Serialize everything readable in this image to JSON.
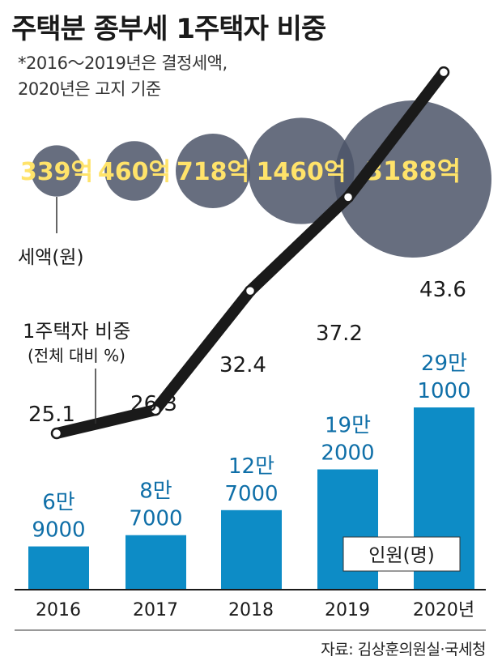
{
  "title": "주택분 종부세 1주택자 비중",
  "note_line1": "*2016～2019년은 결정세액,",
  "note_line2": "2020년은 고지 기준",
  "source": "자료: 김상훈의원실·국세청",
  "colors": {
    "bubble": "#4c5568",
    "bubble_text": "#ffe36a",
    "bar": "#0d8cc6",
    "bar_text": "#0f6fa8",
    "line": "#1a1a1a"
  },
  "chart_data": [
    {
      "type": "bubble",
      "series_label": "세액(원)",
      "categories": [
        "2016",
        "2017",
        "2018",
        "2019",
        "2020년"
      ],
      "values": [
        339,
        460,
        718,
        1460,
        3188
      ],
      "labels": [
        "339억",
        "460억",
        "718억",
        "1460억",
        "3188억"
      ]
    },
    {
      "type": "line",
      "series_label_line1": "1주택자 비중",
      "series_label_line2": "(전체 대비 %)",
      "categories": [
        "2016",
        "2017",
        "2018",
        "2019",
        "2020년"
      ],
      "values": [
        25.1,
        26.3,
        32.4,
        37.2,
        43.6
      ],
      "labels": [
        "25.1",
        "26.3",
        "32.4",
        "37.2",
        "43.6"
      ],
      "ylim": [
        20,
        45
      ]
    },
    {
      "type": "bar",
      "series_label": "인원(명)",
      "categories": [
        "2016",
        "2017",
        "2018",
        "2019",
        "2020년"
      ],
      "values": [
        69000,
        87000,
        127000,
        192000,
        291000
      ],
      "label_top": [
        "6만",
        "8만",
        "12만",
        "19만",
        "29만"
      ],
      "label_bottom": [
        "9000",
        "7000",
        "7000",
        "2000",
        "1000"
      ]
    }
  ]
}
